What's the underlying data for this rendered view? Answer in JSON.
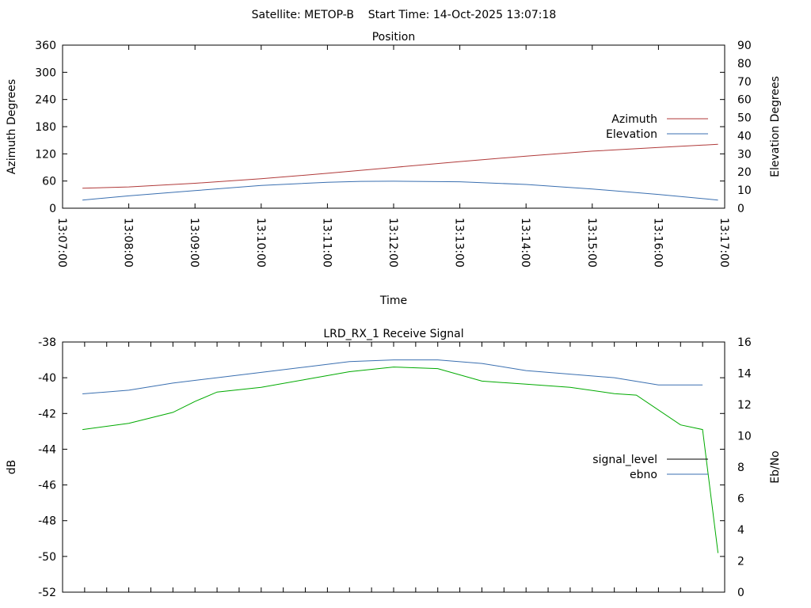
{
  "header": {
    "title": "Satellite: METOP-B    Start Time: 14-Oct-2025 13:07:18"
  },
  "colors": {
    "azimuth": "#b03a3a",
    "elevation": "#3a6fb0",
    "ebno_signal": "#00aa00",
    "signal_level": "#000000",
    "ebno_legend": "#3a6fb0",
    "axis": "#000000"
  },
  "chart_data": [
    {
      "type": "line",
      "title": "Position",
      "xlabel": "Time",
      "ylabel": "Azimuth Degrees",
      "y2label": "Elevation Degrees",
      "ylim": [
        0,
        360
      ],
      "y2lim": [
        0,
        90
      ],
      "yticks": [
        "0",
        "60",
        "120",
        "180",
        "240",
        "300",
        "360"
      ],
      "y2ticks": [
        "0",
        "10",
        "20",
        "30",
        "40",
        "50",
        "60",
        "70",
        "80",
        "90"
      ],
      "xlim": [
        "13:07:00",
        "13:17:00"
      ],
      "xticks": [
        "13:07:00",
        "13:08:00",
        "13:09:00",
        "13:10:00",
        "13:11:00",
        "13:12:00",
        "13:13:00",
        "13:14:00",
        "13:15:00",
        "13:16:00",
        "13:17:00"
      ],
      "legend_position": "right",
      "series": [
        {
          "name": "Azimuth",
          "axis": "left",
          "x": [
            "13:07:18",
            "13:08:00",
            "13:09:00",
            "13:10:00",
            "13:11:00",
            "13:12:00",
            "13:13:00",
            "13:14:00",
            "13:15:00",
            "13:16:00",
            "13:16:54"
          ],
          "values": [
            44,
            47,
            55,
            65,
            77,
            90,
            103,
            115,
            126,
            134,
            141
          ]
        },
        {
          "name": "Elevation",
          "axis": "right",
          "x": [
            "13:07:18",
            "13:08:00",
            "13:09:00",
            "13:10:00",
            "13:11:00",
            "13:11:30",
            "13:12:00",
            "13:13:00",
            "13:14:00",
            "13:15:00",
            "13:16:00",
            "13:16:54"
          ],
          "values": [
            4.5,
            6.8,
            9.7,
            12.6,
            14.3,
            14.8,
            14.9,
            14.6,
            13.1,
            10.6,
            7.6,
            4.5
          ]
        }
      ]
    },
    {
      "type": "line",
      "title": "LRD_RX_1 Receive Signal",
      "ylabel": "dB",
      "y2label": "Eb/No",
      "ylim": [
        -52,
        -38
      ],
      "y2lim": [
        0,
        16
      ],
      "yticks": [
        "-52",
        "-50",
        "-48",
        "-46",
        "-44",
        "-42",
        "-40",
        "-38"
      ],
      "y2ticks": [
        "0",
        "2",
        "4",
        "6",
        "8",
        "10",
        "12",
        "14",
        "16"
      ],
      "xlim": [
        "13:07:00",
        "13:17:00"
      ],
      "legend_position": "right",
      "series": [
        {
          "name": "signal_level",
          "axis": "left",
          "x": [
            "13:07:18",
            "13:08:00",
            "13:08:40",
            "13:09:20",
            "13:10:00",
            "13:10:40",
            "13:11:20",
            "13:12:00",
            "13:12:40",
            "13:13:20",
            "13:14:00",
            "13:14:40",
            "13:15:20",
            "13:16:00",
            "13:16:40"
          ],
          "values": [
            -40.9,
            -40.7,
            -40.3,
            -40.0,
            -39.7,
            -39.4,
            -39.1,
            -39.0,
            -39.0,
            -39.2,
            -39.6,
            -39.8,
            -40.0,
            -40.4,
            -40.4
          ]
        },
        {
          "name": "ebno",
          "axis": "right",
          "x": [
            "13:07:18",
            "13:08:00",
            "13:08:40",
            "13:09:00",
            "13:09:20",
            "13:10:00",
            "13:10:40",
            "13:11:20",
            "13:12:00",
            "13:12:40",
            "13:13:20",
            "13:14:00",
            "13:14:40",
            "13:15:20",
            "13:15:40",
            "13:16:20",
            "13:16:40",
            "13:16:54"
          ],
          "values": [
            10.4,
            10.8,
            11.5,
            12.2,
            12.8,
            13.1,
            13.6,
            14.1,
            14.4,
            14.3,
            13.5,
            13.3,
            13.1,
            12.7,
            12.6,
            10.7,
            10.4,
            2.5
          ]
        }
      ]
    }
  ]
}
